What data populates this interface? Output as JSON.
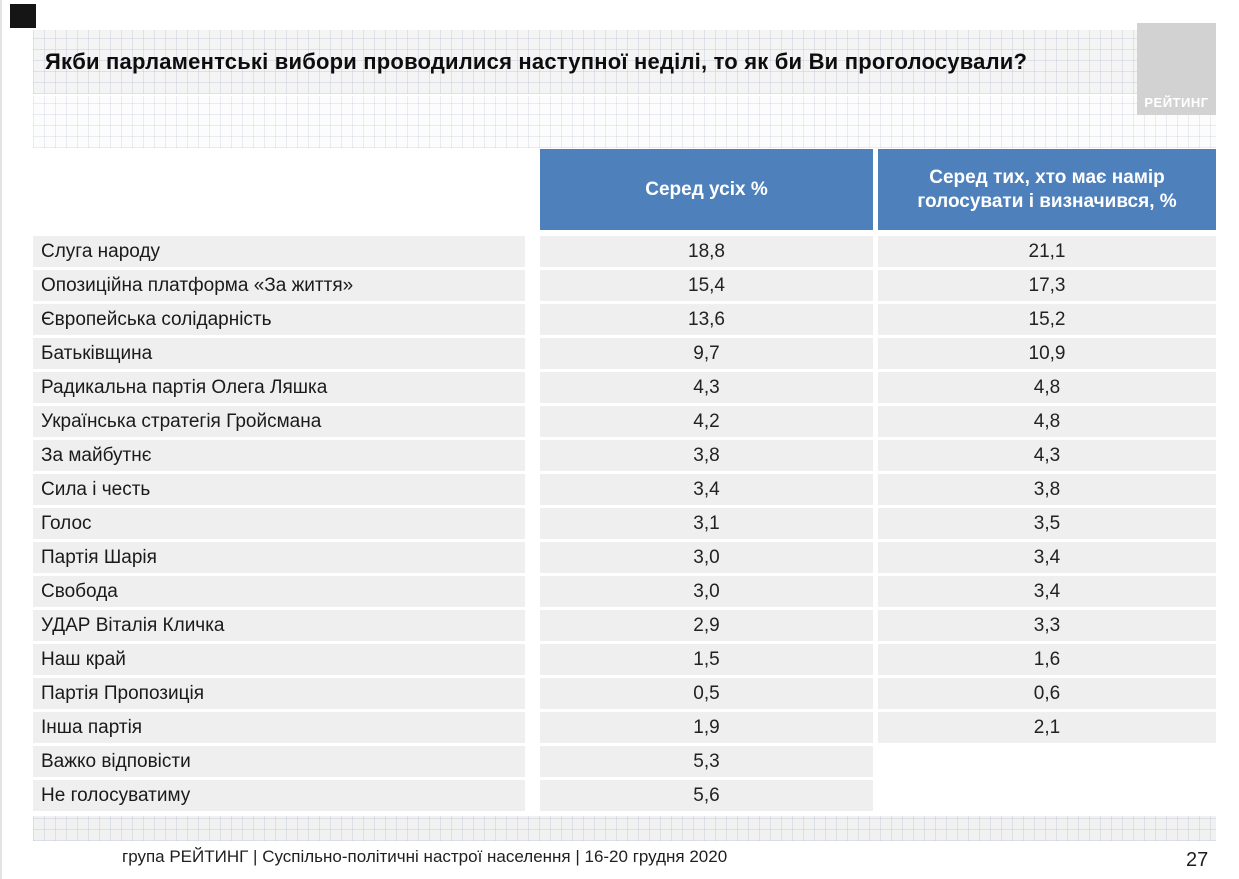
{
  "slide": {
    "title": "Якби парламентські вибори проводилися наступної неділі, то як би Ви проголосували?",
    "logo_text": "РЕЙТИНГ",
    "footer": "група РЕЙТИНГ | Суспільно-політичні настрої населення | 16-20 грудня 2020",
    "page_number": "27"
  },
  "colors": {
    "header_blue": "#4E81BC",
    "row_gray": "#EFEFEF",
    "logo_gray": "#D2D2D2"
  },
  "chart_data": {
    "type": "table",
    "title": "Якби парламентські вибори проводилися наступної неділі, то як би Ви проголосували?",
    "columns": [
      "Серед усіх %",
      "Серед тих, хто має намір голосувати і визначився, %"
    ],
    "rows": [
      {
        "label": "Слуга народу",
        "all": "18,8",
        "decided": "21,1"
      },
      {
        "label": "Опозиційна платформа «За життя»",
        "all": "15,4",
        "decided": "17,3"
      },
      {
        "label": "Європейська солідарність",
        "all": "13,6",
        "decided": "15,2"
      },
      {
        "label": "Батьківщина",
        "all": "9,7",
        "decided": "10,9"
      },
      {
        "label": "Радикальна партія Олега Ляшка",
        "all": "4,3",
        "decided": "4,8"
      },
      {
        "label": "Українська стратегія Гройсмана",
        "all": "4,2",
        "decided": "4,8"
      },
      {
        "label": "За майбутнє",
        "all": "3,8",
        "decided": "4,3"
      },
      {
        "label": "Сила і честь",
        "all": "3,4",
        "decided": "3,8"
      },
      {
        "label": "Голос",
        "all": "3,1",
        "decided": "3,5"
      },
      {
        "label": "Партія Шарія",
        "all": "3,0",
        "decided": "3,4"
      },
      {
        "label": "Свобода",
        "all": "3,0",
        "decided": "3,4"
      },
      {
        "label": "УДАР Віталія Кличка",
        "all": "2,9",
        "decided": "3,3"
      },
      {
        "label": "Наш край",
        "all": "1,5",
        "decided": "1,6"
      },
      {
        "label": "Партія Пропозиція",
        "all": "0,5",
        "decided": "0,6"
      },
      {
        "label": "Інша партія",
        "all": "1,9",
        "decided": "2,1"
      },
      {
        "label": "Важко відповісти",
        "all": "5,3",
        "decided": ""
      },
      {
        "label": "Не голосуватиму",
        "all": "5,6",
        "decided": ""
      }
    ]
  }
}
